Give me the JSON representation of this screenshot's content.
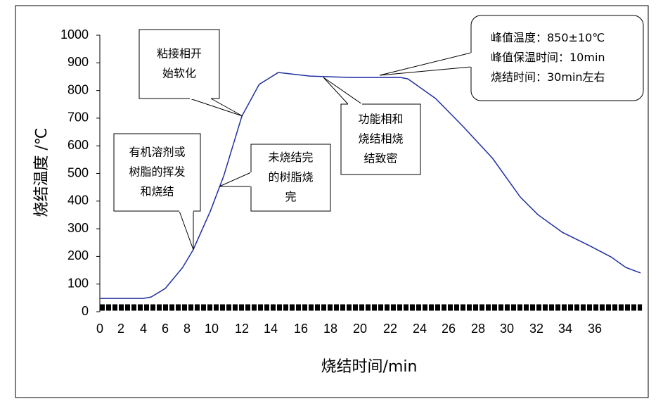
{
  "chart_data": {
    "type": "line",
    "x_label": "烧结时间/min",
    "y_label": "烧结温度 /℃",
    "x": [
      0,
      4,
      4.7,
      6,
      7.6,
      8.5,
      9.9,
      10.8,
      12,
      13.2,
      14.5,
      16.6,
      19.4,
      22.7,
      23.2,
      25.1,
      27,
      29,
      30.9,
      32.1,
      33.8,
      35.7,
      37.1,
      38.1,
      39.1
    ],
    "series": [
      {
        "color": "#1f2f9f",
        "values": [
          48,
          48,
          53,
          84,
          160,
          224,
          364,
          491,
          707,
          822,
          865,
          852,
          847,
          847,
          842,
          771,
          669,
          555,
          415,
          351,
          287,
          237,
          198,
          160,
          140
        ]
      }
    ],
    "xlim": [
      0,
      39.1
    ],
    "xticks": [
      0,
      2,
      4,
      6,
      8,
      10,
      12,
      14,
      16,
      18,
      20,
      22,
      24,
      26,
      28,
      30,
      32,
      34,
      36
    ],
    "ylim": [
      0,
      1000
    ],
    "yticks": [
      0,
      100,
      200,
      300,
      400,
      500,
      600,
      700,
      800,
      900,
      1000
    ],
    "annotations": [
      {
        "lines": [
          "粘接相开",
          "始软化"
        ]
      },
      {
        "lines": [
          "有机溶剂或",
          "树脂的挥发",
          "和烧结"
        ]
      },
      {
        "lines": [
          "未烧结完",
          "的树脂烧",
          "完"
        ]
      },
      {
        "lines": [
          "功能相和",
          "烧结相烧",
          "结致密"
        ]
      },
      {
        "lines": [
          "峰值温度：850±10℃",
          "峰值保温时间：10min",
          "烧结时间：30min左右"
        ]
      }
    ]
  }
}
